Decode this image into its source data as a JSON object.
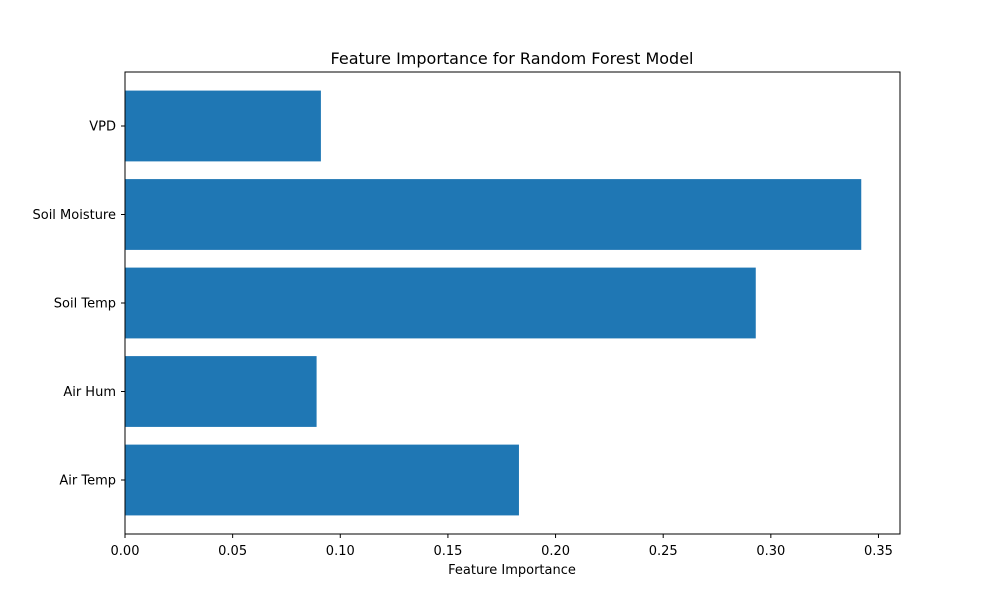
{
  "chart_data": {
    "type": "bar",
    "orientation": "horizontal",
    "title": "Feature Importance for Random Forest Model",
    "xlabel": "Feature Importance",
    "ylabel": "",
    "categories": [
      "Air Temp",
      "Air Hum",
      "Soil Temp",
      "Soil Moisture",
      "VPD"
    ],
    "values": [
      0.183,
      0.089,
      0.293,
      0.342,
      0.091
    ],
    "xlim": [
      0.0,
      0.36
    ],
    "x_ticks": [
      "0.00",
      "0.05",
      "0.10",
      "0.15",
      "0.20",
      "0.25",
      "0.30",
      "0.35"
    ],
    "grid": false,
    "bar_color": "#1f77b4"
  }
}
